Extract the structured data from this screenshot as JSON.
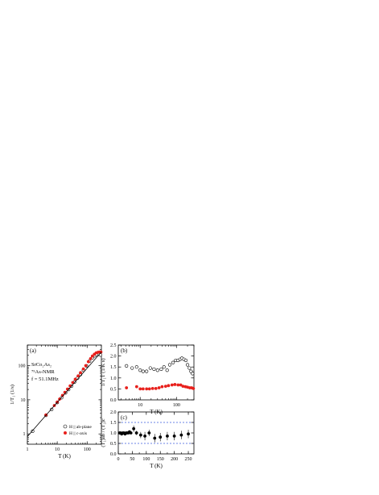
{
  "chart_data": [
    {
      "id": "a",
      "panel_label": "(a)",
      "type": "scatter",
      "xscale": "log",
      "yscale": "log",
      "xlim": [
        1,
        300
      ],
      "ylim": [
        0.5,
        400
      ],
      "xlabel": "T  (K)",
      "ylabel": "1/T₁  (1/s)",
      "x_ticks": [
        1,
        10,
        100
      ],
      "y_ticks": [
        1,
        10,
        100
      ],
      "annotations": [
        "SrCo₂As₂",
        "⁷⁵As-NMR",
        "f = 51.1MHz"
      ],
      "legend": {
        "placement": "bottom-right",
        "entries": [
          "H || ab-plane",
          "H || c-axis"
        ]
      },
      "series": [
        {
          "name": "H || ab-plane",
          "marker": "open-circle",
          "color": "#000000",
          "x": [
            1.5,
            4.2,
            6.5,
            10,
            14,
            19,
            24,
            30,
            38,
            48,
            60,
            75,
            95,
            120,
            150,
            180,
            210,
            250,
            280
          ],
          "y": [
            1.2,
            3.5,
            5.2,
            8.3,
            11.5,
            16,
            20,
            25,
            33,
            43,
            55,
            73,
            98,
            135,
            170,
            195,
            210,
            215,
            205
          ]
        },
        {
          "name": "H || c-axis",
          "marker": "filled-circle",
          "color": "#e8201c",
          "x": [
            4.2,
            8,
            10,
            12,
            15,
            18,
            22,
            27,
            33,
            40,
            50,
            60,
            75,
            90,
            110,
            130,
            150,
            175,
            200,
            230,
            260,
            290
          ],
          "y": [
            3.6,
            6.8,
            8.6,
            10.5,
            13.5,
            16.5,
            20.5,
            25.5,
            32,
            40,
            50,
            62,
            80,
            100,
            130,
            160,
            190,
            215,
            235,
            245,
            250,
            250
          ]
        },
        {
          "name": "",
          "marker": "line",
          "color": "#000000",
          "x": [
            1,
            300
          ],
          "y": [
            0.84,
            252
          ]
        }
      ]
    },
    {
      "id": "b",
      "panel_label": "(b)",
      "type": "scatter",
      "xscale": "log",
      "xlim": [
        2.5,
        300
      ],
      "ylim": [
        0,
        2.5
      ],
      "xlabel": "T  (K)",
      "ylabel": "1/T₁T  (1/K s)",
      "x_ticks": [
        10,
        100
      ],
      "y_ticks": [
        0.0,
        0.5,
        1.0,
        1.5,
        2.0,
        2.5
      ],
      "series": [
        {
          "name": "H || ab-plane",
          "marker": "open-circle",
          "color": "#000000",
          "x": [
            4.2,
            6,
            8,
            10,
            12,
            15,
            19,
            24,
            30,
            38,
            45,
            55,
            65,
            80,
            95,
            110,
            125,
            140,
            160,
            180,
            200,
            225,
            250,
            275
          ],
          "y": [
            1.55,
            1.45,
            1.5,
            1.35,
            1.3,
            1.3,
            1.45,
            1.4,
            1.35,
            1.4,
            1.5,
            1.35,
            1.6,
            1.7,
            1.8,
            1.8,
            1.85,
            1.9,
            1.85,
            1.8,
            1.6,
            1.45,
            1.3,
            1.2
          ]
        },
        {
          "name": "H || c-axis",
          "marker": "filled-circle",
          "color": "#e8201c",
          "x": [
            4.2,
            8,
            10,
            12,
            15,
            18,
            22,
            27,
            33,
            40,
            50,
            60,
            75,
            90,
            110,
            130,
            150,
            175,
            200,
            230,
            260,
            290
          ],
          "y": [
            0.55,
            0.6,
            0.5,
            0.5,
            0.5,
            0.5,
            0.52,
            0.52,
            0.55,
            0.6,
            0.62,
            0.65,
            0.68,
            0.7,
            0.68,
            0.68,
            0.62,
            0.6,
            0.58,
            0.55,
            0.55,
            0.52
          ]
        }
      ]
    },
    {
      "id": "c",
      "panel_label": "(c)",
      "type": "scatter",
      "xscale": "linear",
      "xlim": [
        0,
        270
      ],
      "ylim": [
        0,
        2.0
      ],
      "xlabel": "T  (K)",
      "ylabel": "(T₁)ab / (T₁)c",
      "x_ticks": [
        0,
        50,
        100,
        150,
        200,
        250
      ],
      "y_ticks": [
        0.0,
        0.5,
        1.0,
        1.5,
        2.0
      ],
      "reference_lines": [
        0.5,
        1.5
      ],
      "series": [
        {
          "name": "(T₁)ab / (T₁)c",
          "marker": "filled-circle-errorbar",
          "color": "#000000",
          "x": [
            4.2,
            8,
            12,
            16,
            20,
            24,
            28,
            32,
            36,
            40,
            45,
            55,
            65,
            80,
            95,
            110,
            130,
            150,
            175,
            200,
            225,
            250
          ],
          "y": [
            1.0,
            1.0,
            0.95,
            1.0,
            1.0,
            0.95,
            1.0,
            1.0,
            1.0,
            1.05,
            1.0,
            1.2,
            1.0,
            0.9,
            0.85,
            1.0,
            0.75,
            0.8,
            0.85,
            0.85,
            0.9,
            0.95
          ],
          "err": [
            0.05,
            0.05,
            0.05,
            0.05,
            0.05,
            0.05,
            0.05,
            0.05,
            0.05,
            0.05,
            0.05,
            0.15,
            0.1,
            0.15,
            0.2,
            0.15,
            0.2,
            0.2,
            0.2,
            0.2,
            0.2,
            0.2
          ]
        }
      ]
    }
  ]
}
